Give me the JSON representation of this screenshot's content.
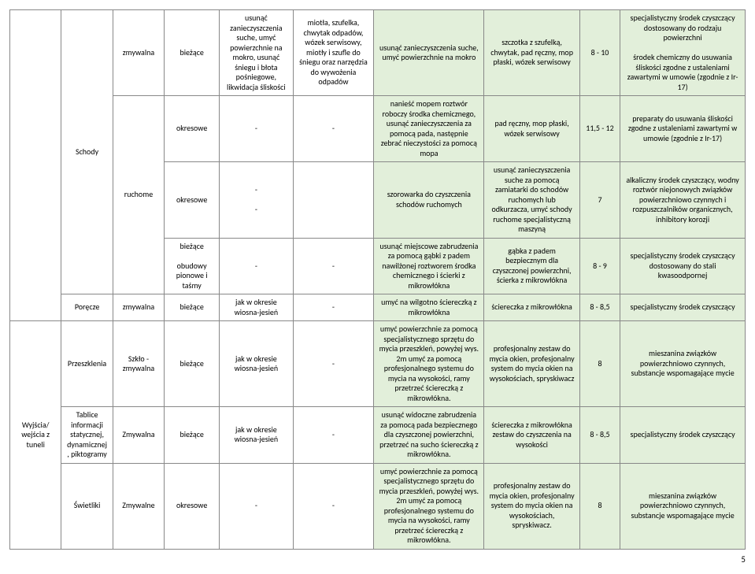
{
  "colwidths": [
    "7%",
    "7%",
    "7%",
    "7.5%",
    "10%",
    "11%",
    "15%",
    "13%",
    "5.5%",
    "17%"
  ],
  "pageNumber": "5",
  "rows": [
    {
      "cells": [
        {
          "text": "",
          "rowspan": 5,
          "col": 0,
          "class": ""
        },
        {
          "text": "Schody",
          "rowspan": 4,
          "col": 1
        },
        {
          "text": "zmywalna",
          "col": 2
        },
        {
          "text": "bieżące",
          "col": 3
        },
        {
          "text": "usunąć zanieczyszczenia suche, umyć powierzchnie na mokro, usunąć śniegu i błota pośniegowe, likwidacja śliskości",
          "col": 4
        },
        {
          "text": "miotła, szufelka, chwytak odpadów,\nwózek serwisowy, miotły i szufle do śniegu oraz narzędzia do wywożenia odpadów",
          "col": 5
        },
        {
          "text": "usunąć zanieczyszczenia suche, umyć powierzchnie na mokro",
          "col": 6,
          "class": "highlight"
        },
        {
          "text": "szczotka z szufelką, chwytak, pad ręczny, mop płaski, wózek serwisowy",
          "col": 7,
          "class": "highlight"
        },
        {
          "text": "8 - 10",
          "col": 8,
          "class": "highlight"
        },
        {
          "text": "specjalistyczny środek czyszczący dostosowany do rodzaju powierzchni\n\nśrodek chemiczny  do usuwania śliskości zgodne z ustaleniami zawartymi w umowie (zgodnie z Ir-17)",
          "col": 9,
          "class": "highlight"
        }
      ]
    },
    {
      "cells": [
        {
          "text": "ruchome",
          "rowspan": 3,
          "col": 2
        },
        {
          "text": "okresowe",
          "col": 3
        },
        {
          "text": "-",
          "col": 4
        },
        {
          "text": "-",
          "col": 5
        },
        {
          "text": "nanieść mopem roztwór roboczy środka chemicznego, usunąć zanieczyszczenia za pomocą pada, następnie zebrać nieczystości za pomocą mopa",
          "col": 6,
          "class": "highlight"
        },
        {
          "text": "pad ręczny, mop płaski, wózek serwisowy",
          "col": 7,
          "class": "highlight"
        },
        {
          "text": "11,5 - 12",
          "col": 8,
          "class": "highlight"
        },
        {
          "text": "preparaty do usuwania śliskości zgodne z ustaleniami zawartymi w umowie (zgodnie z Ir-17)",
          "col": 9,
          "class": "highlight"
        }
      ]
    },
    {
      "cells": [
        {
          "text": "okresowe",
          "col": 3
        },
        {
          "text": "-\n\n-",
          "col": 4
        },
        {
          "text": "",
          "col": 5
        },
        {
          "text": "szorowarka do czyszczenia schodów ruchomych",
          "col": 6,
          "class": "highlight"
        },
        {
          "text": "usunąć zanieczyszczenia suche za pomocą zamiatarki do schodów ruchomych lub odkurzacza, umyć schody ruchome specjalistyczną maszyną",
          "col": 7,
          "class": "highlight"
        },
        {
          "text": "7",
          "col": 8,
          "class": "highlight"
        },
        {
          "text": "alkaliczny środek czyszczący, wodny roztwór niejonowych związków powierzchniowo czynnych i rozpuszczalników organicznych, inhibitory korozji",
          "col": 9,
          "class": "highlight"
        }
      ]
    },
    {
      "cells": [
        {
          "text": "bieżące\n\nobudowy pionowe i taśmy",
          "col": 3
        },
        {
          "text": "-",
          "col": 4
        },
        {
          "text": "-",
          "col": 5
        },
        {
          "text": "usunąć miejscowe zabrudzenia za pomocą gąbki z padem nawilżonej roztworem środka chemicznego i ścierki z mikrowłókna",
          "col": 6,
          "class": "highlight"
        },
        {
          "text": "gąbka z padem bezpiecznym dla czyszczonej powierzchni, ścierka z mikrowłókna",
          "col": 7,
          "class": "highlight"
        },
        {
          "text": "8 - 9",
          "col": 8,
          "class": "highlight"
        },
        {
          "text": "specjalistyczny środek czyszczący dostosowany do stali kwasoodpornej",
          "col": 9,
          "class": "highlight"
        }
      ]
    },
    {
      "cells": [
        {
          "text": "Poręcze",
          "col": 1
        },
        {
          "text": "zmywalna",
          "col": 2
        },
        {
          "text": "bieżące",
          "col": 3
        },
        {
          "text": "jak w okresie wiosna-jesień",
          "col": 4
        },
        {
          "text": "-",
          "col": 5
        },
        {
          "text": "umyć na wilgotno ściereczką z mikrowłókna",
          "col": 6,
          "class": "highlight"
        },
        {
          "text": "ściereczka z mikrowłókna",
          "col": 7,
          "class": "highlight"
        },
        {
          "text": "8 - 8,5",
          "col": 8,
          "class": "highlight"
        },
        {
          "text": "specjalistyczny środek czyszczący",
          "col": 9,
          "class": "highlight"
        }
      ]
    },
    {
      "cells": [
        {
          "text": "Wyjścia/ wejścia z tuneli",
          "rowspan": 3,
          "col": 0
        },
        {
          "text": "Przeszklenia",
          "col": 1
        },
        {
          "text": "Szkło - zmywalna",
          "col": 2
        },
        {
          "text": "bieżące",
          "col": 3
        },
        {
          "text": "jak w okresie wiosna-jesień",
          "col": 4
        },
        {
          "text": "-",
          "col": 5
        },
        {
          "text": "umyć powierzchnie za pomocą specjalistycznego sprzętu do mycia przeszkleń, powyżej wys. 2m umyć za pomocą profesjonalnego systemu do mycia na wysokości, ramy przetrzeć ściereczką z mikrowłókna.",
          "col": 6,
          "class": "highlight"
        },
        {
          "text": "profesjonalny zestaw do mycia okien, profesjonalny system do mycia okien na wysokościach, spryskiwacz",
          "col": 7,
          "class": "highlight"
        },
        {
          "text": "8",
          "col": 8,
          "class": "highlight"
        },
        {
          "text": "mieszanina związków powierzchniowo czynnych, substancje wspomagające mycie",
          "col": 9,
          "class": "highlight"
        }
      ]
    },
    {
      "cells": [
        {
          "text": "Tablice informacji statycznej, dynamicznej, piktogramy",
          "col": 1
        },
        {
          "text": "Zmywalna",
          "col": 2
        },
        {
          "text": "bieżące",
          "col": 3
        },
        {
          "text": "jak w okresie wiosna-jesień",
          "col": 4
        },
        {
          "text": "-",
          "col": 5
        },
        {
          "text": "usunąć widoczne zabrudzenia za pomocą pada bezpiecznego dla czyszczonej powierzchni, przetrzeć na sucho ściereczką z mikrowłókna.",
          "col": 6,
          "class": "highlight"
        },
        {
          "text": "ściereczka z mikrowłókna zestaw do czyszczenia na wysokości",
          "col": 7,
          "class": "highlight"
        },
        {
          "text": "8 - 8,5",
          "col": 8,
          "class": "highlight"
        },
        {
          "text": "specjalistyczny środek czyszczący",
          "col": 9,
          "class": "highlight"
        }
      ]
    },
    {
      "cells": [
        {
          "text": "Świetliki",
          "col": 1
        },
        {
          "text": "Zmywalne",
          "col": 2
        },
        {
          "text": "okresowe",
          "col": 3
        },
        {
          "text": "-",
          "col": 4
        },
        {
          "text": "-",
          "col": 5
        },
        {
          "text": "umyć powierzchnie za pomocą specjalistycznego sprzętu do mycia przeszkleń, powyżej wys. 2m umyć za pomocą profesjonalnego systemu do mycia na wysokości, ramy przetrzeć ściereczką z mikrowłókna.",
          "col": 6,
          "class": "highlight"
        },
        {
          "text": "profesjonalny zestaw do mycia okien, profesjonalny system do mycia okien na wysokościach, spryskiwacz.",
          "col": 7,
          "class": "highlight"
        },
        {
          "text": "8",
          "col": 8,
          "class": "highlight"
        },
        {
          "text": "mieszanina związków powierzchniowo czynnych, substancje wspomagające mycie",
          "col": 9,
          "class": "highlight"
        }
      ]
    }
  ]
}
